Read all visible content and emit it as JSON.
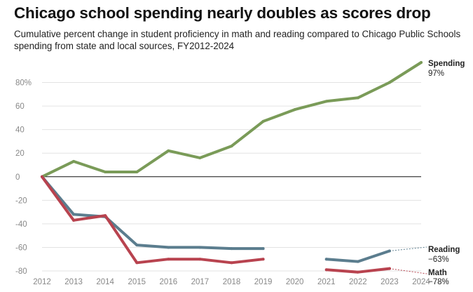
{
  "chart_data": {
    "type": "line",
    "title": "Chicago school spending nearly doubles as scores drop",
    "subtitle": "Cumulative percent change in student proficiency in math and reading compared to Chicago Public Schools spending from state and local sources, FY2012-2024",
    "x": [
      "2012",
      "2013",
      "2014",
      "2015",
      "2016",
      "2017",
      "2018",
      "2019",
      "2020",
      "2021",
      "2022",
      "2023",
      "2024"
    ],
    "ylim": [
      -80,
      80
    ],
    "yticks": [
      80,
      60,
      40,
      20,
      0,
      -20,
      -40,
      -60,
      -80
    ],
    "ytick_labels": [
      "80%",
      "60",
      "40",
      "20",
      "0",
      "-20",
      "-40",
      "-60",
      "-80"
    ],
    "xlabel": "",
    "ylabel": "",
    "grid": true,
    "series": [
      {
        "name": "Spending",
        "color": "#7a9b58",
        "values": [
          0,
          13,
          4,
          4,
          22,
          16,
          26,
          47,
          57,
          64,
          67,
          80,
          97
        ],
        "end_label": "Spending",
        "end_value_label": "97%"
      },
      {
        "name": "Reading",
        "color": "#5b7d8e",
        "values": [
          0,
          -32,
          -34,
          -58,
          -60,
          -60,
          -61,
          -61,
          null,
          -70,
          -72,
          -63,
          null
        ],
        "end_label": "Reading",
        "end_value_label": "−63%"
      },
      {
        "name": "Math",
        "color": "#b8434f",
        "values": [
          0,
          -37,
          -33,
          -73,
          -70,
          -70,
          -73,
          -70,
          null,
          -79,
          -81,
          -78,
          null
        ],
        "end_label": "Math",
        "end_value_label": "−78%"
      }
    ]
  }
}
